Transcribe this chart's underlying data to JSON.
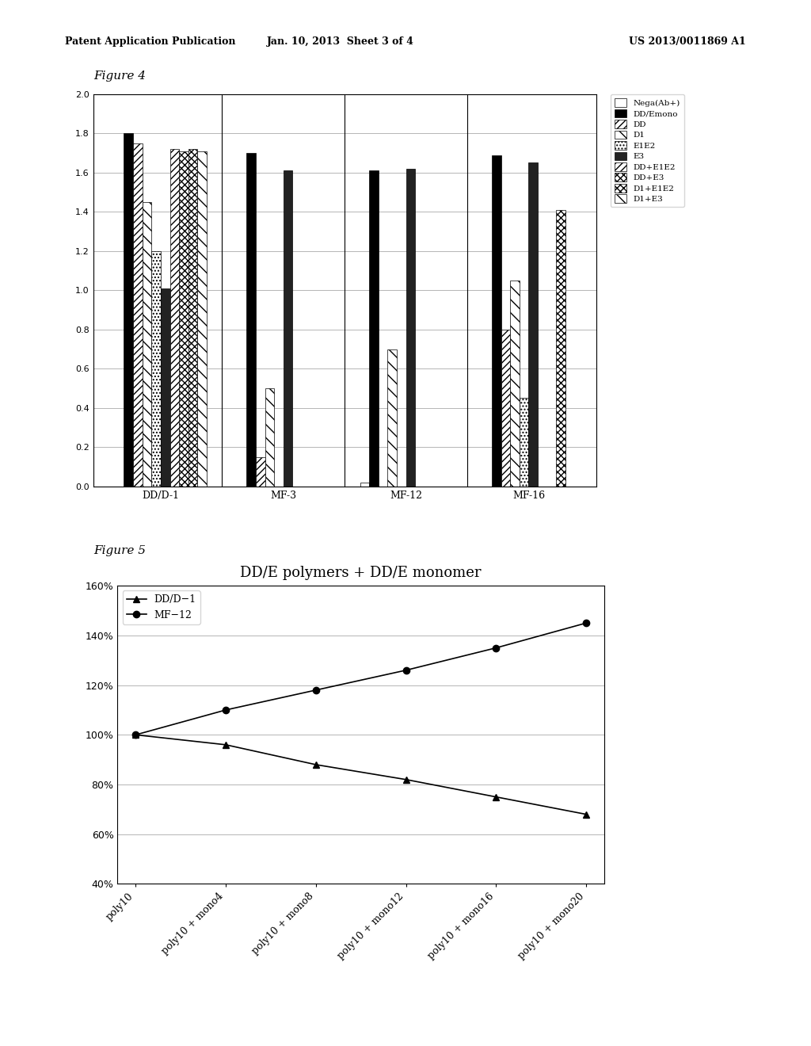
{
  "fig4": {
    "title": "Figure 4",
    "groups": [
      "DD/D-1",
      "MF-3",
      "MF-12",
      "MF-16"
    ],
    "series_labels": [
      "Nega(Ab+)",
      "DD/Emono",
      "DD",
      "D1",
      "E1E2",
      "E3",
      "DD+E1E2",
      "DD+E3",
      "D1+E1E2",
      "D1+E3"
    ],
    "data": {
      "DD/D-1": [
        0.0,
        1.8,
        1.75,
        1.45,
        1.2,
        1.01,
        1.72,
        1.71,
        1.72,
        1.71
      ],
      "MF-3": [
        0.0,
        1.7,
        0.15,
        0.5,
        0.0,
        1.61,
        0.0,
        0.0,
        0.0,
        0.0
      ],
      "MF-12": [
        0.02,
        1.61,
        0.0,
        0.7,
        0.0,
        1.62,
        0.0,
        0.0,
        0.0,
        0.0
      ],
      "MF-16": [
        0.0,
        1.69,
        0.8,
        1.05,
        0.45,
        1.65,
        0.0,
        0.0,
        1.41,
        0.0
      ]
    },
    "ylim": [
      0.0,
      2.0
    ],
    "yticks": [
      0.0,
      0.2,
      0.4,
      0.6,
      0.8,
      1.0,
      1.2,
      1.4,
      1.6,
      1.8,
      2.0
    ]
  },
  "fig5": {
    "title": "DD/E polymers + DD/E monomer",
    "series": {
      "DD/D-1": [
        100,
        96,
        88,
        82,
        75,
        68
      ],
      "MF-12": [
        100,
        110,
        118,
        126,
        135,
        145
      ]
    },
    "xticklabels": [
      "poly10",
      "poly10 + mono4",
      "poly10 + mono8",
      "poly10 + mono12",
      "poly10 + mono16",
      "poly10 + mono20"
    ],
    "ylim": [
      40,
      160
    ],
    "yticks": [
      40,
      60,
      80,
      100,
      120,
      140,
      160
    ]
  },
  "header_left": "Patent Application Publication",
  "header_mid": "Jan. 10, 2013  Sheet 3 of 4",
  "header_right": "US 2013/0011869 A1",
  "bg_color": "#ffffff"
}
